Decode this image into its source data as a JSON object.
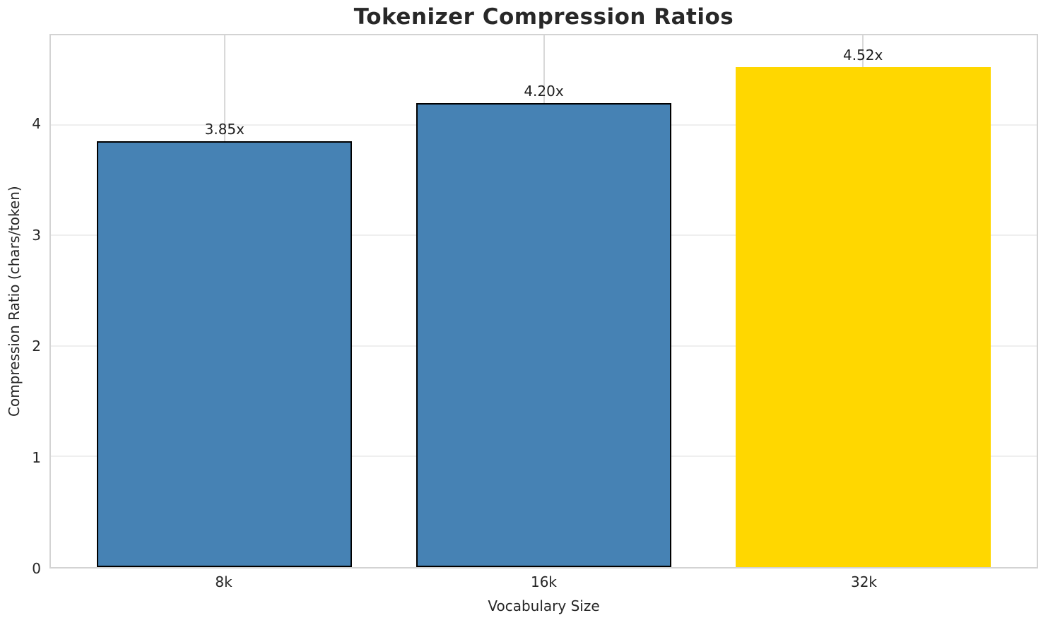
{
  "chart_data": {
    "type": "bar",
    "title": "Tokenizer Compression Ratios",
    "xlabel": "Vocabulary Size",
    "ylabel": "Compression Ratio (chars/token)",
    "categories": [
      "8k",
      "16k",
      "32k"
    ],
    "values": [
      3.85,
      4.2,
      4.52
    ],
    "bar_labels": [
      "3.85x",
      "4.20x",
      "4.52x"
    ],
    "bar_colors": [
      "#4682b4",
      "#4682b4",
      "#ffd700"
    ],
    "bar_edge_colors": [
      "#000000",
      "#000000",
      "none"
    ],
    "yticks": [
      "0",
      "1",
      "2",
      "3",
      "4"
    ],
    "ytick_values": [
      0,
      1,
      2,
      3,
      4
    ],
    "ylim": [
      0,
      4.81
    ],
    "grid": true,
    "legend_position": "none",
    "colors": {
      "grid_horizontal": "#efefef",
      "grid_vertical": "#d9d9d9",
      "spine": "#d3d3d3",
      "text": "#262626",
      "bar_edge": "#000000"
    }
  }
}
